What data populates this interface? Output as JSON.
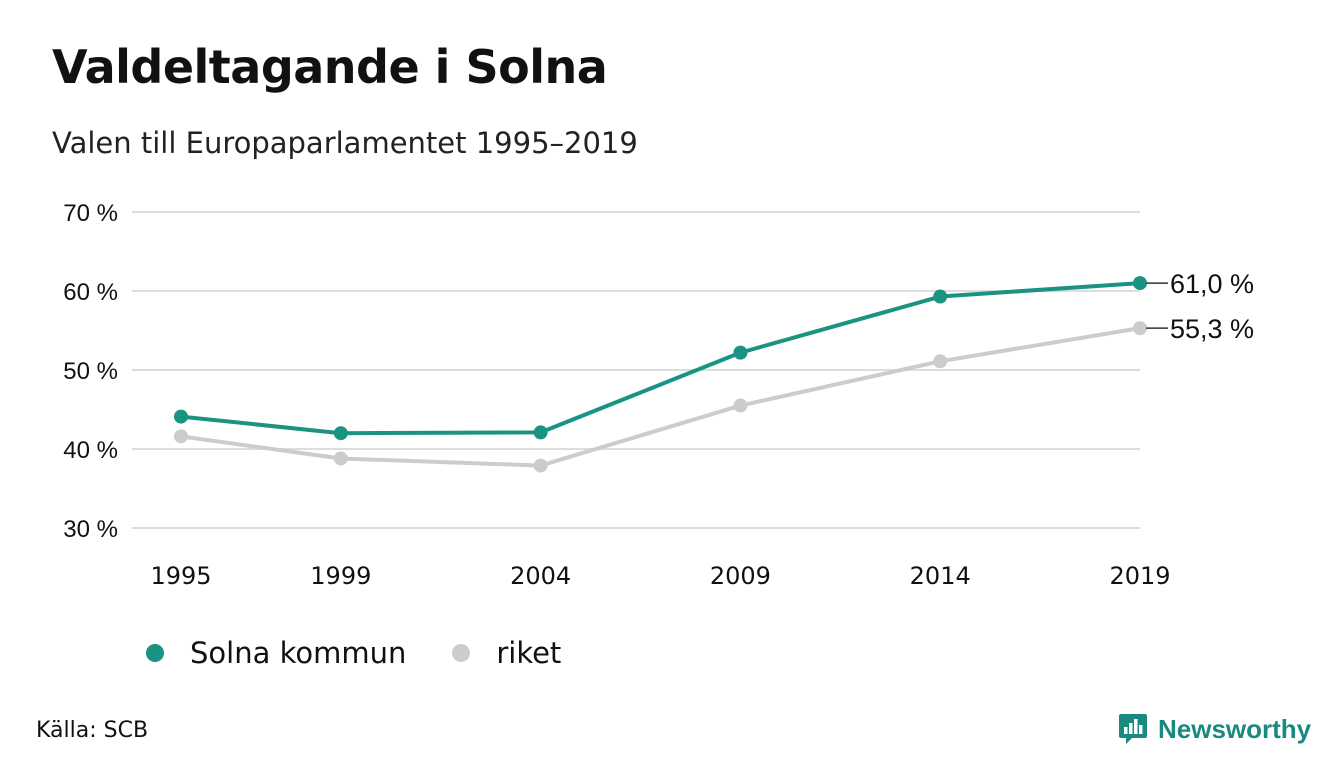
{
  "title": "Valdeltagande i Solna",
  "subtitle": "Valen till Europaparlamentet 1995–2019",
  "source": "Källa: SCB",
  "brand": {
    "name": "Newsworthy",
    "icon": "newsworthy-logo-icon"
  },
  "legend": [
    {
      "label": "Solna kommun",
      "color": "#1a9383"
    },
    {
      "label": "riket",
      "color": "#cccccc"
    }
  ],
  "chart_data": {
    "type": "line",
    "x": [
      1995,
      1999,
      2004,
      2009,
      2014,
      2019
    ],
    "x_tick_labels": [
      "1995",
      "1999",
      "2004",
      "2009",
      "2014",
      "2019"
    ],
    "y_ticks": [
      30,
      40,
      50,
      60,
      70
    ],
    "y_tick_labels": [
      "30 %",
      "40 %",
      "50 %",
      "60 %",
      "70 %"
    ],
    "ylim": [
      30,
      70
    ],
    "grid": true,
    "legend_position": "bottom-left",
    "series": [
      {
        "name": "Solna kommun",
        "color": "#1a9383",
        "values": [
          44.1,
          42.0,
          42.1,
          52.2,
          59.3,
          61.0
        ],
        "end_label": "61,0 %"
      },
      {
        "name": "riket",
        "color": "#cccccc",
        "values": [
          41.6,
          38.8,
          37.9,
          45.5,
          51.1,
          55.3
        ],
        "end_label": "55,3 %"
      }
    ]
  }
}
